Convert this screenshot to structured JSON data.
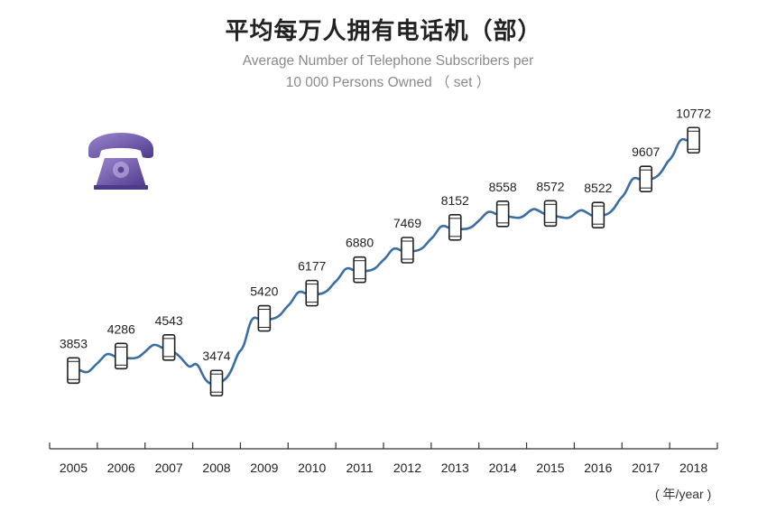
{
  "title": "平均每万人拥有电话机（部）",
  "subtitle_line1": "Average Number of Telephone Subscribers per",
  "subtitle_line2": "10 000 Persons Owned （ set ）",
  "x_unit": "( 年/year )",
  "icon": "vintage-telephone-icon",
  "colors": {
    "line": "#3a6ea5",
    "phone_icon": "#6a52a3",
    "text": "#222222",
    "axis": "#333333"
  },
  "chart_data": {
    "type": "line",
    "categories": [
      "2005",
      "2006",
      "2007",
      "2008",
      "2009",
      "2010",
      "2011",
      "2012",
      "2013",
      "2014",
      "2015",
      "2016",
      "2017",
      "2018"
    ],
    "values": [
      3853,
      4286,
      4543,
      3474,
      5420,
      6177,
      6880,
      7469,
      8152,
      8558,
      8572,
      8522,
      9607,
      10772
    ],
    "title": "平均每万人拥有电话机（部）",
    "subtitle": "Average Number of Telephone Subscribers per 10 000 Persons Owned （ set ）",
    "xlabel": "( 年/year )",
    "ylabel": "",
    "ylim": [
      1500,
      12000
    ],
    "grid": false,
    "data_labels": true,
    "marker": "mobile-phone"
  }
}
